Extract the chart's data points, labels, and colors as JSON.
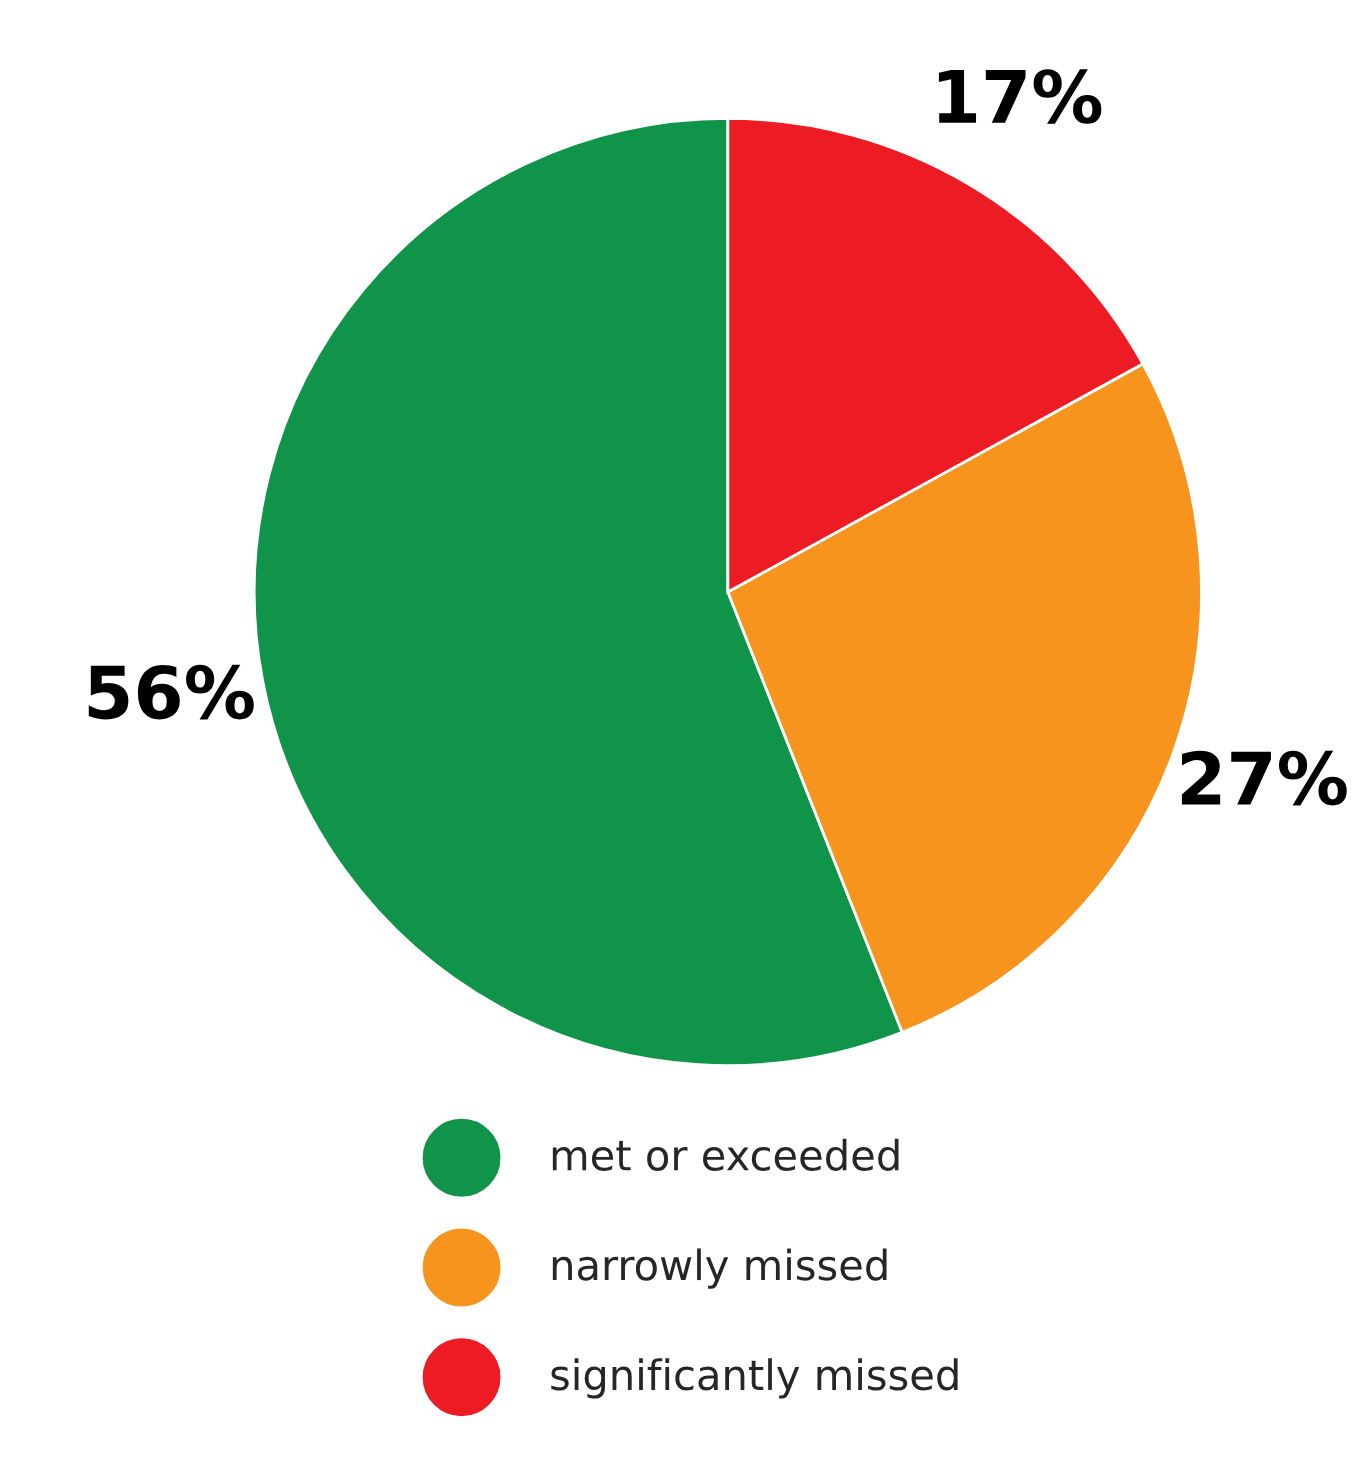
{
  "chart_data": {
    "type": "pie",
    "categories": [
      "met or exceeded",
      "narrowly missed",
      "significantly missed"
    ],
    "values": [
      56,
      27,
      17
    ],
    "colors": [
      "#10944a",
      "#f7941d",
      "#ed1c24"
    ],
    "value_labels": [
      "56%",
      "27%",
      "17%"
    ],
    "legend": "bottom"
  }
}
